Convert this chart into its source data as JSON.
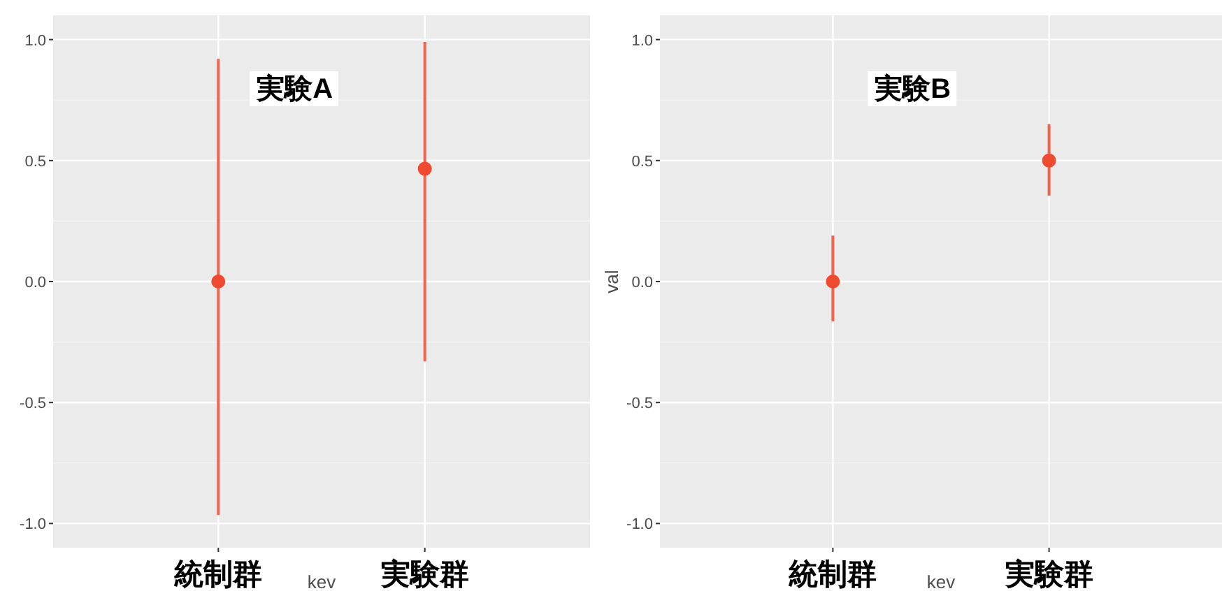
{
  "chart_data": [
    {
      "type": "scatter",
      "categories": [
        "統制群",
        "実験群"
      ],
      "xlabel": "kev",
      "annotations": [
        "実験A"
      ],
      "series": [
        {
          "color": "#ef4a30",
          "values": [
            0,
            0.466
          ],
          "errors": [
            [
              -0.965,
              0.92
            ],
            [
              -0.33,
              0.99
            ]
          ]
        }
      ],
      "ylim": [
        -1.1,
        1.1
      ],
      "yticks": [
        {
          "value": -1,
          "label": "-1.0"
        },
        {
          "value": -0.5,
          "label": "-0.5"
        },
        {
          "value": 0,
          "label": "0.0"
        },
        {
          "value": 0.5,
          "label": "0.5"
        },
        {
          "value": 1,
          "label": "1.0"
        }
      ],
      "grid": true,
      "marker": "circle"
    },
    {
      "type": "scatter",
      "categories": [
        "統制群",
        "実験群"
      ],
      "xlabel": "kev",
      "ylabel": "val",
      "annotations": [
        "実験B"
      ],
      "series": [
        {
          "color": "#ef4a30",
          "values": [
            0,
            0.5
          ],
          "errors": [
            [
              -0.165,
              0.19
            ],
            [
              0.355,
              0.65
            ]
          ]
        }
      ],
      "ylim": [
        -1.1,
        1.1
      ],
      "yticks": [
        {
          "value": -1,
          "label": "-1.0"
        },
        {
          "value": -0.5,
          "label": "-0.5"
        },
        {
          "value": 0,
          "label": "0.0"
        },
        {
          "value": 0.5,
          "label": "0.5"
        },
        {
          "value": 1,
          "label": "1.0"
        }
      ],
      "grid": true,
      "marker": "circle"
    }
  ]
}
